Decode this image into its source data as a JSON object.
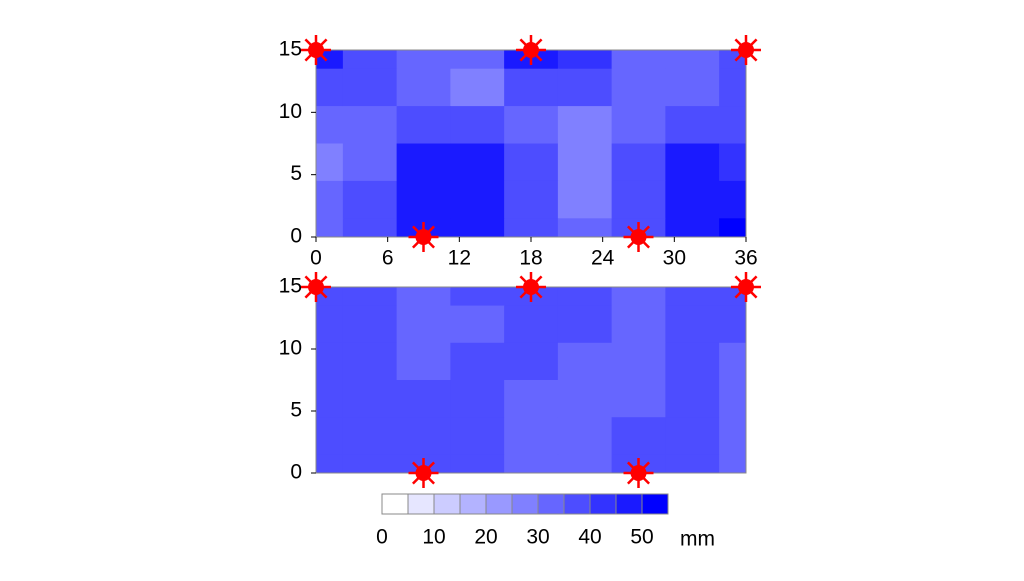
{
  "chart_data": [
    {
      "type": "contour",
      "colormap": [
        "#ffffff",
        "#0000ff"
      ],
      "xlim": [
        0,
        36
      ],
      "ylim": [
        0,
        15
      ],
      "xticks": [
        0,
        6,
        12,
        18,
        24,
        30,
        36
      ],
      "yticks": [
        0,
        5,
        10,
        15
      ],
      "x": [
        0,
        4.5,
        9,
        13.5,
        18,
        22.5,
        27,
        31.5,
        36
      ],
      "y": [
        15,
        12,
        9,
        6,
        3,
        0
      ],
      "z": [
        [
          45,
          38,
          32,
          30,
          45,
          42,
          32,
          30,
          35
        ],
        [
          38,
          35,
          32,
          28,
          38,
          35,
          30,
          30,
          35
        ],
        [
          32,
          32,
          38,
          38,
          32,
          28,
          32,
          35,
          35
        ],
        [
          28,
          32,
          45,
          45,
          35,
          25,
          35,
          45,
          40
        ],
        [
          30,
          35,
          48,
          45,
          35,
          28,
          38,
          45,
          45
        ],
        [
          32,
          35,
          45,
          48,
          35,
          30,
          35,
          45,
          50
        ]
      ],
      "markers": {
        "color": "#ff0000",
        "x": [
          0,
          18,
          36,
          9,
          27
        ],
        "y": [
          15,
          15,
          15,
          0,
          0
        ]
      }
    },
    {
      "type": "contour",
      "colormap": [
        "#ffffff",
        "#0000ff"
      ],
      "xlim": [
        0,
        36
      ],
      "ylim": [
        0,
        15
      ],
      "yticks": [
        0,
        5,
        10,
        15
      ],
      "x": [
        0,
        4.5,
        9,
        13.5,
        18,
        22.5,
        27,
        31.5,
        36
      ],
      "y": [
        15,
        12,
        9,
        6,
        3,
        0
      ],
      "z": [
        [
          35,
          35,
          32,
          35,
          35,
          35,
          32,
          35,
          35
        ],
        [
          35,
          35,
          32,
          32,
          35,
          35,
          32,
          35,
          35
        ],
        [
          35,
          35,
          32,
          35,
          35,
          32,
          32,
          35,
          32
        ],
        [
          35,
          35,
          35,
          35,
          32,
          30,
          32,
          35,
          32
        ],
        [
          35,
          35,
          38,
          35,
          32,
          32,
          35,
          38,
          32
        ],
        [
          35,
          35,
          38,
          35,
          32,
          32,
          35,
          35,
          32
        ]
      ],
      "markers": {
        "color": "#ff0000",
        "x": [
          0,
          18,
          36,
          9,
          27
        ],
        "y": [
          15,
          15,
          15,
          0,
          0
        ]
      }
    },
    {
      "type": "colorbar",
      "colormap": [
        "#ffffff",
        "#0000ff"
      ],
      "levels": [
        0,
        5,
        10,
        15,
        20,
        25,
        30,
        35,
        40,
        45,
        50,
        55
      ],
      "ticks": [
        0,
        10,
        20,
        30,
        40,
        50
      ],
      "unit": "mm"
    }
  ]
}
